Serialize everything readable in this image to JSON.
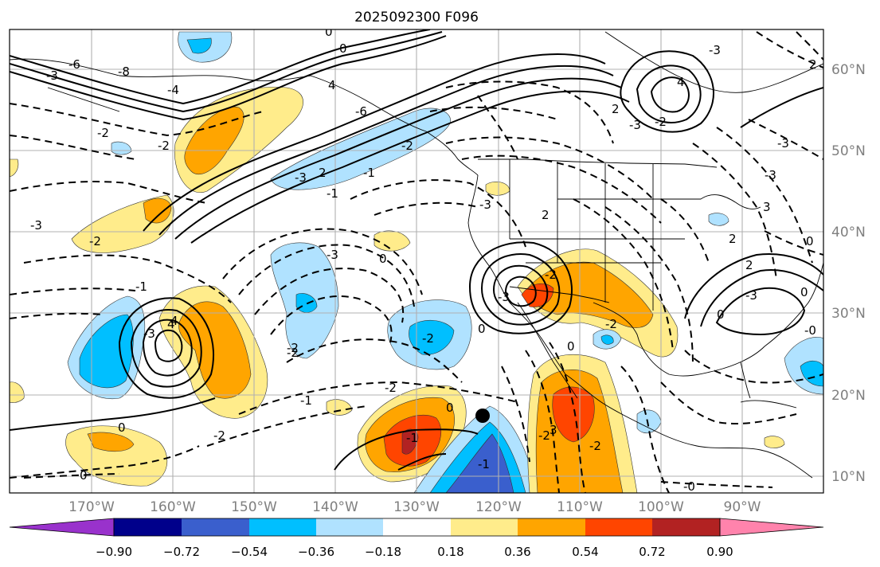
{
  "title": "2025092300 F096",
  "lon_labels": [
    "170°W",
    "160°W",
    "150°W",
    "140°W",
    "130°W",
    "120°W",
    "110°W",
    "100°W",
    "90°W"
  ],
  "lat_labels": [
    "60°N",
    "50°N",
    "40°N",
    "30°N",
    "20°N",
    "10°N"
  ],
  "colorbar": {
    "ticks": [
      "−0.90",
      "−0.72",
      "−0.54",
      "−0.36",
      "−0.18",
      "0.18",
      "0.36",
      "0.54",
      "0.72",
      "0.90"
    ],
    "colors": [
      "#9932cc",
      "#00008b",
      "#3a5fcd",
      "#00bfff",
      "#b0e2ff",
      "#ffffff",
      "#ffec8b",
      "#ffa500",
      "#ff4500",
      "#b22222",
      "#ff83ac"
    ]
  },
  "contour_labels": [
    "-6",
    "-3",
    "-8",
    "-4",
    "0",
    "0",
    "4",
    "-6",
    "-2",
    "-2",
    "-3",
    "2",
    "-3",
    "4",
    "2",
    "-3",
    "-2",
    "-3",
    "-2",
    "0",
    "-1",
    "-3",
    "-2",
    "-3",
    "-2",
    "2",
    "-1",
    "4",
    "-3",
    "0",
    "-2",
    "-1",
    "-3",
    "-2",
    "4",
    "-3",
    "0",
    "-2",
    "0",
    "2",
    "2",
    "3",
    "-2",
    "0",
    "-1",
    "-2",
    "-1",
    "-2",
    "0",
    "0",
    "-2",
    "-0",
    "-0",
    "0",
    "0",
    "-3",
    "2",
    "-3",
    "3",
    "-2",
    "-1"
  ],
  "marker": {
    "label": "storm-center"
  }
}
